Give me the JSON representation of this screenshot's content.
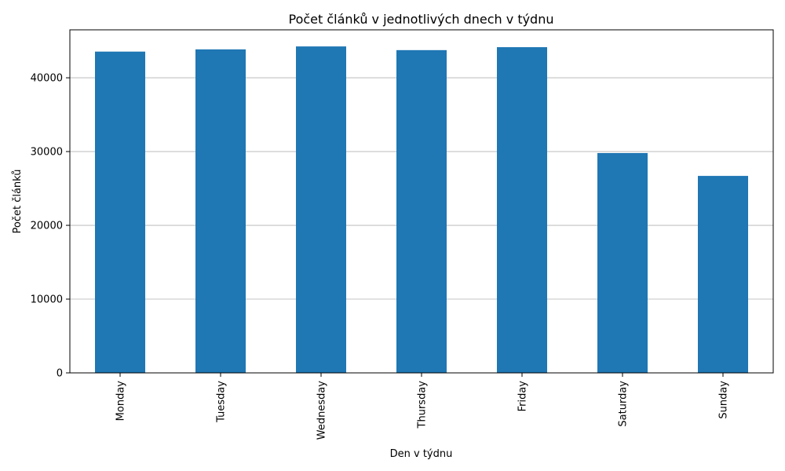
{
  "chart_data": {
    "type": "bar",
    "title": "Počet článků v jednotlivých dnech v týdnu",
    "xlabel": "Den v týdnu",
    "ylabel": "Počet článků",
    "categories": [
      "Monday",
      "Tuesday",
      "Wednesday",
      "Thursday",
      "Friday",
      "Saturday",
      "Sunday"
    ],
    "values": [
      43550,
      43850,
      44250,
      43750,
      44150,
      29800,
      26700
    ],
    "ylim": [
      0,
      46500
    ],
    "yticks": [
      0,
      10000,
      20000,
      30000,
      40000
    ],
    "grid": "y",
    "bar_color": "#1f77b4",
    "legend": "none"
  }
}
